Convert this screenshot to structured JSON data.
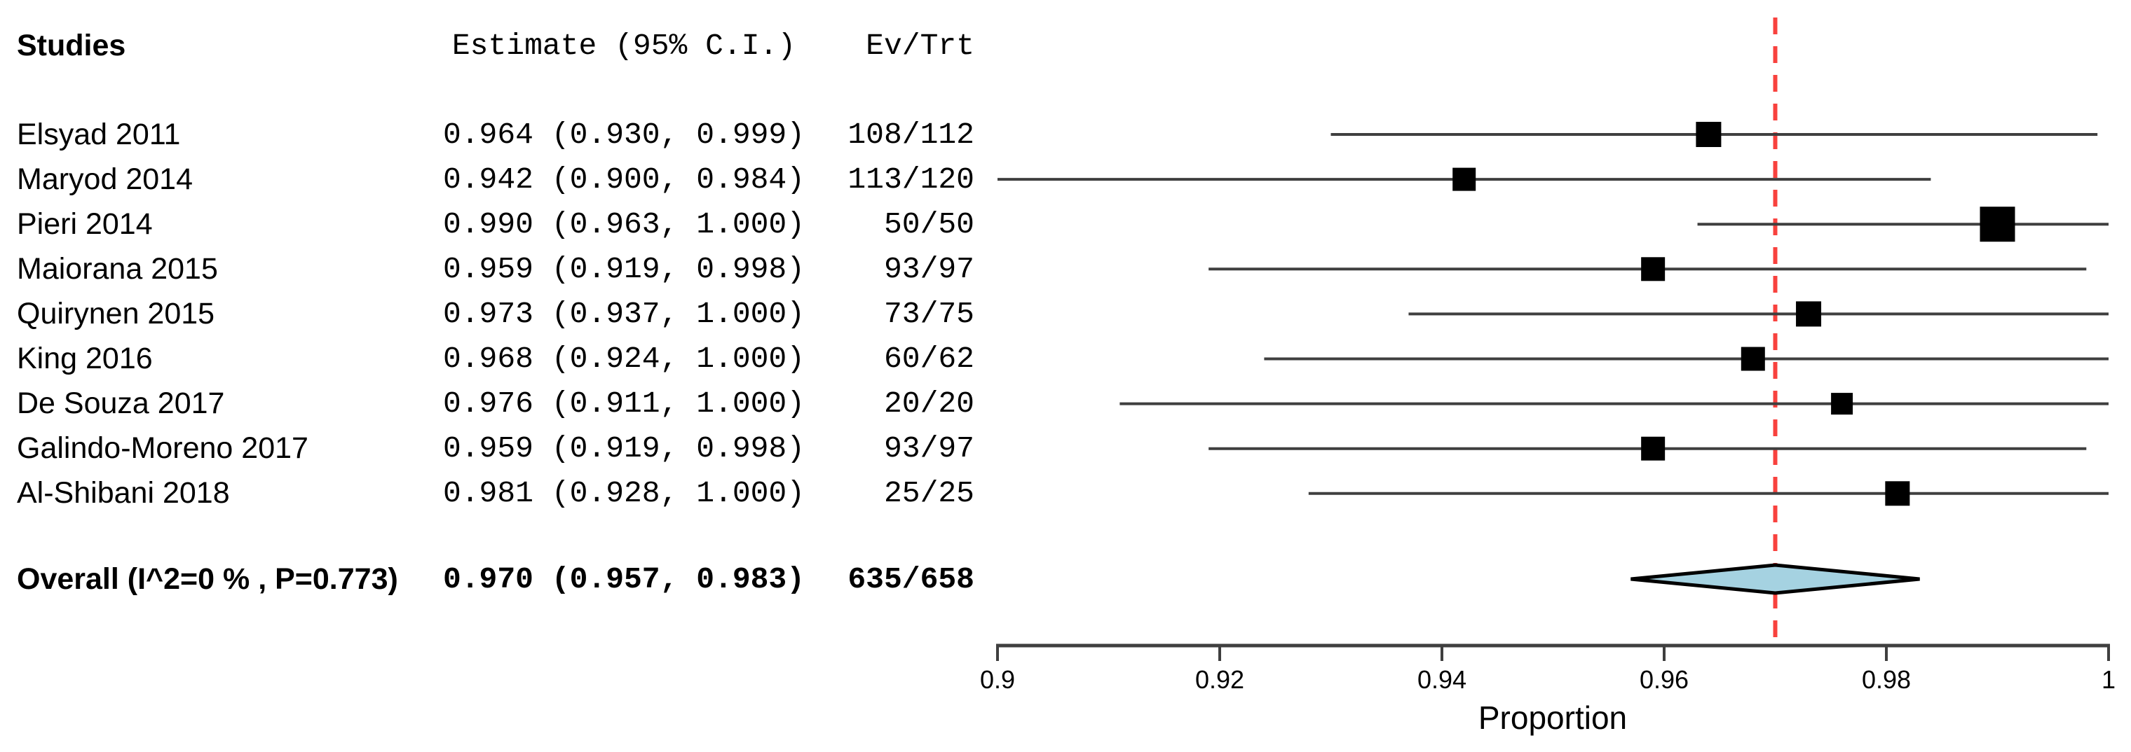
{
  "columns": {
    "studies": "Studies",
    "estimate": "Estimate (95% C.I.)",
    "evtrt": "Ev/Trt"
  },
  "chart_data": {
    "type": "forest",
    "xlabel": "Proportion",
    "x_axis": {
      "min": 0.9,
      "max": 1.0,
      "ticks": [
        {
          "value": 0.9,
          "label": "0.9"
        },
        {
          "value": 0.92,
          "label": "0.92"
        },
        {
          "value": 0.94,
          "label": "0.94"
        },
        {
          "value": 0.96,
          "label": "0.96"
        },
        {
          "value": 0.98,
          "label": "0.98"
        },
        {
          "value": 1.0,
          "label": "1"
        }
      ]
    },
    "ref_line": {
      "value": 0.97,
      "style": "dashed",
      "color": "#f8423e"
    },
    "studies": [
      {
        "name": "Elsyad 2011",
        "estimate": 0.964,
        "ci_low": 0.93,
        "ci_high": 0.999,
        "ev_trt": "108/112",
        "box_size": 36
      },
      {
        "name": "Maryod 2014",
        "estimate": 0.942,
        "ci_low": 0.9,
        "ci_high": 0.984,
        "ev_trt": "113/120",
        "box_size": 33
      },
      {
        "name": "Pieri 2014",
        "estimate": 0.99,
        "ci_low": 0.963,
        "ci_high": 1.0,
        "ev_trt": "50/50",
        "box_size": 50
      },
      {
        "name": "Maiorana 2015",
        "estimate": 0.959,
        "ci_low": 0.919,
        "ci_high": 0.998,
        "ev_trt": "93/97",
        "box_size": 34
      },
      {
        "name": "Quirynen 2015",
        "estimate": 0.973,
        "ci_low": 0.937,
        "ci_high": 1.0,
        "ev_trt": "73/75",
        "box_size": 36
      },
      {
        "name": "King 2016",
        "estimate": 0.968,
        "ci_low": 0.924,
        "ci_high": 1.0,
        "ev_trt": "60/62",
        "box_size": 34
      },
      {
        "name": "De Souza 2017",
        "estimate": 0.976,
        "ci_low": 0.911,
        "ci_high": 1.0,
        "ev_trt": "20/20",
        "box_size": 31
      },
      {
        "name": "Galindo-Moreno 2017",
        "estimate": 0.959,
        "ci_low": 0.919,
        "ci_high": 0.998,
        "ev_trt": "93/97",
        "box_size": 34
      },
      {
        "name": "Al-Shibani 2018",
        "estimate": 0.981,
        "ci_low": 0.928,
        "ci_high": 1.0,
        "ev_trt": "25/25",
        "box_size": 35
      }
    ],
    "overall": {
      "name": "Overall (I^2=0 % , P=0.773)",
      "estimate": 0.97,
      "ci_low": 0.957,
      "ci_high": 0.983,
      "ev_trt": "635/658"
    },
    "colors": {
      "ci_line": "#3f3f3f",
      "box": "#000000",
      "diamond_fill": "#a5d2e1",
      "diamond_stroke": "#000000",
      "axis": "#3f3f3f",
      "ref_line": "#f8423e",
      "text": "#000000"
    }
  }
}
